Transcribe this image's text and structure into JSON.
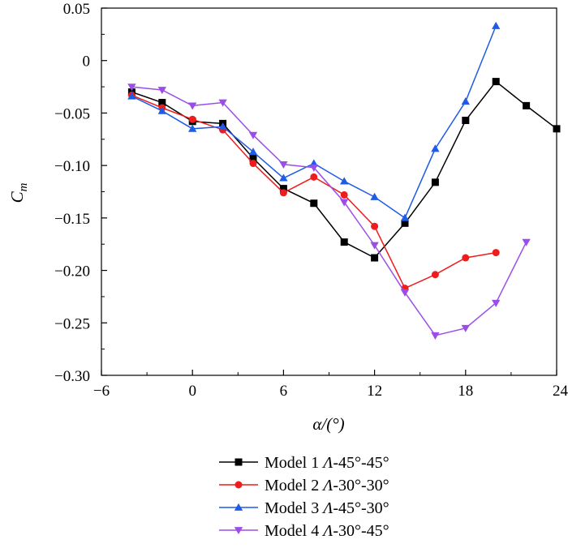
{
  "chart_data": {
    "type": "line",
    "title": "",
    "xlabel": "α/(°)",
    "ylabel": "Cm",
    "ylabel_main": "C",
    "ylabel_sub": "m",
    "xlim": [
      -6,
      24
    ],
    "ylim": [
      -0.3,
      0.05
    ],
    "xticks": [
      -6,
      0,
      6,
      12,
      18,
      24
    ],
    "xtick_labels": [
      "−6",
      "0",
      "6",
      "12",
      "18",
      "24"
    ],
    "yticks": [
      0.05,
      0,
      -0.05,
      -0.1,
      -0.15,
      -0.2,
      -0.25,
      -0.3
    ],
    "ytick_labels": [
      "0.05",
      "0",
      "−0.05",
      "−0.10",
      "−0.15",
      "−0.20",
      "−0.25",
      "−0.30"
    ],
    "grid": false,
    "legend_position": "bottom",
    "series": [
      {
        "name": "Model 1 Λ-45°-45°",
        "label_prefix": "Model 1 ",
        "label_symbol": "Λ",
        "label_suffix": "-45°-45°",
        "color": "#000000",
        "marker": "square",
        "x": [
          -4,
          -2,
          0,
          2,
          4,
          6,
          8,
          10,
          12,
          14,
          16,
          18,
          20,
          22,
          24
        ],
        "y": [
          -0.03,
          -0.04,
          -0.058,
          -0.06,
          -0.093,
          -0.122,
          -0.136,
          -0.173,
          -0.188,
          -0.155,
          -0.116,
          -0.057,
          -0.02,
          -0.043,
          -0.065
        ]
      },
      {
        "name": "Model 2 Λ-30°-30°",
        "label_prefix": "Model 2 ",
        "label_symbol": "Λ",
        "label_suffix": "-30°-30°",
        "color": "#ee1c1c",
        "marker": "circle",
        "x": [
          -4,
          -2,
          0,
          2,
          4,
          6,
          8,
          10,
          12,
          14,
          16,
          18,
          20
        ],
        "y": [
          -0.033,
          -0.045,
          -0.056,
          -0.066,
          -0.098,
          -0.126,
          -0.111,
          -0.128,
          -0.158,
          -0.217,
          -0.204,
          -0.188,
          -0.183
        ]
      },
      {
        "name": "Model 3 Λ-45°-30°",
        "label_prefix": "Model 3 ",
        "label_symbol": "Λ",
        "label_suffix": "-45°-30°",
        "color": "#1e5be6",
        "marker": "triangle-up",
        "x": [
          -4,
          -2,
          0,
          2,
          4,
          6,
          8,
          10,
          12,
          14,
          16,
          18,
          20
        ],
        "y": [
          -0.034,
          -0.048,
          -0.065,
          -0.063,
          -0.087,
          -0.112,
          -0.098,
          -0.115,
          -0.13,
          -0.15,
          -0.084,
          -0.039,
          0.033
        ]
      },
      {
        "name": "Model 4 Λ-30°-45°",
        "label_prefix": "Model 4 ",
        "label_symbol": "Λ",
        "label_suffix": "-30°-45°",
        "color": "#9b4dea",
        "marker": "triangle-down",
        "x": [
          -4,
          -2,
          0,
          2,
          4,
          6,
          8,
          10,
          12,
          14,
          16,
          18,
          20,
          22
        ],
        "y": [
          -0.025,
          -0.028,
          -0.043,
          -0.04,
          -0.071,
          -0.099,
          -0.102,
          -0.135,
          -0.176,
          -0.221,
          -0.262,
          -0.255,
          -0.231,
          -0.173
        ]
      }
    ]
  }
}
